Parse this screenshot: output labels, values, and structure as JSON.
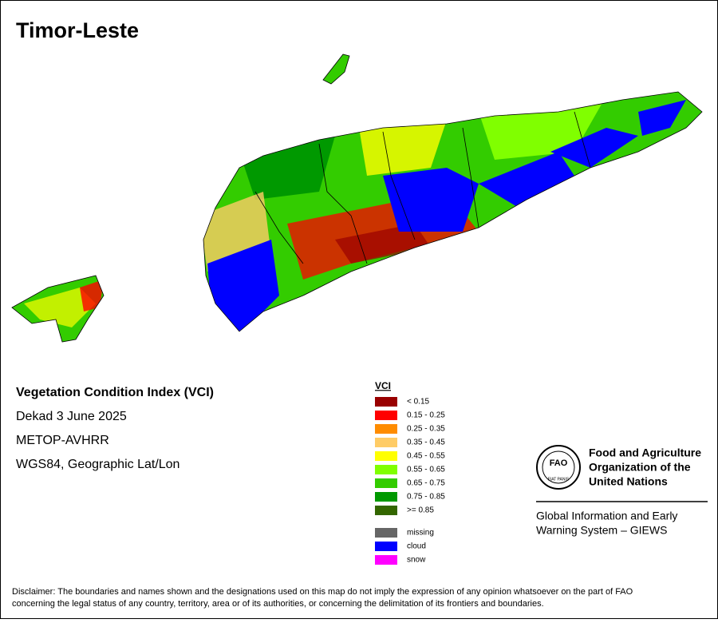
{
  "title": "Timor-Leste",
  "info": [
    "Vegetation Condition Index (VCI)",
    "Dekad 3 June 2025",
    "METOP-AVHRR",
    "WGS84, Geographic Lat/Lon"
  ],
  "legend": {
    "title": "VCI",
    "items": [
      {
        "label": "< 0.15",
        "color": "#990000"
      },
      {
        "label": "0.15 - 0.25",
        "color": "#ff0000"
      },
      {
        "label": "0.25 - 0.35",
        "color": "#ff8c00"
      },
      {
        "label": "0.35 - 0.45",
        "color": "#ffcc66"
      },
      {
        "label": "0.45 - 0.55",
        "color": "#ffff00"
      },
      {
        "label": "0.55 - 0.65",
        "color": "#80ff00"
      },
      {
        "label": "0.65 - 0.75",
        "color": "#33cc00"
      },
      {
        "label": "0.75 - 0.85",
        "color": "#009900"
      },
      {
        "label": ">= 0.85",
        "color": "#336600"
      }
    ],
    "extra": [
      {
        "label": "missing",
        "color": "#666666"
      },
      {
        "label": "cloud",
        "color": "#0000ff"
      },
      {
        "label": "snow",
        "color": "#ff00ff"
      }
    ]
  },
  "logo": {
    "letters": "FAO",
    "motto": "FIAT PANIS",
    "org": [
      "Food and Agriculture",
      "Organization of the",
      "United Nations"
    ],
    "system": [
      "Global Information and Early",
      "Warning System – GIEWS"
    ]
  },
  "disclaimer": [
    "Disclaimer: The boundaries and names shown and the designations used on this map do not imply the expression of any opinion whatsoever on the part of FAO",
    "concerning the legal status of any country, territory, area or of its authorities, or concerning the delimitation of its frontiers and boundaries."
  ]
}
